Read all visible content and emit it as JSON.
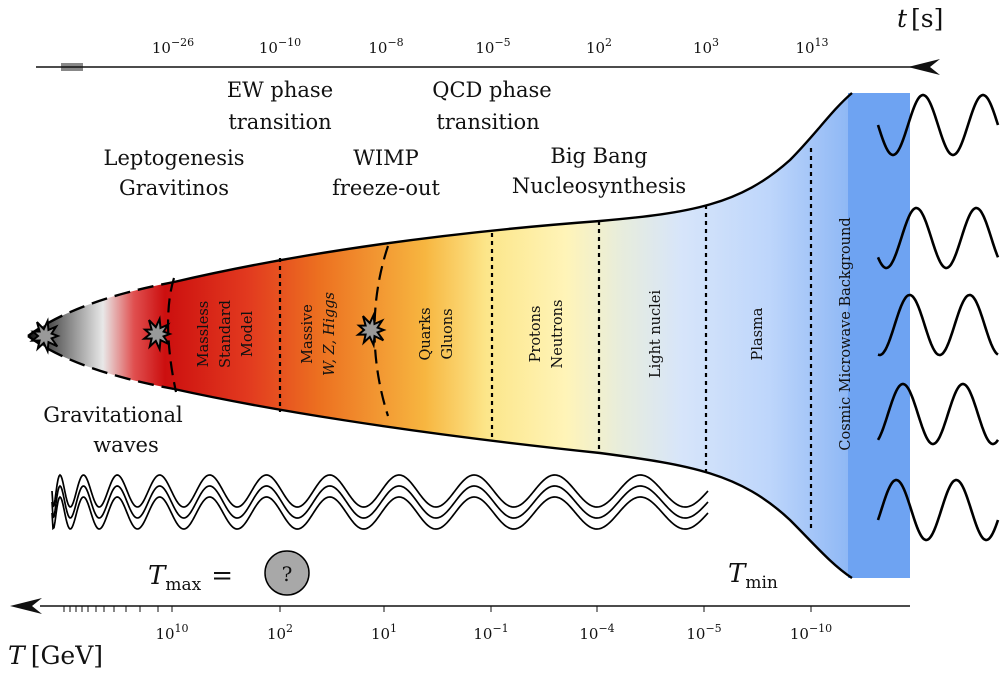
{
  "top_axis": {
    "variable": "t",
    "unit": "[s]",
    "ticks": [
      {
        "base": "10",
        "exp": "−26"
      },
      {
        "base": "10",
        "exp": "−10"
      },
      {
        "base": "10",
        "exp": "−8"
      },
      {
        "base": "10",
        "exp": "−5"
      },
      {
        "base": "10",
        "exp": "2"
      },
      {
        "base": "10",
        "exp": "3"
      },
      {
        "base": "10",
        "exp": "13"
      }
    ]
  },
  "bottom_axis": {
    "variable": "T",
    "unit": "[GeV]",
    "ticks": [
      {
        "base": "10",
        "exp": "10"
      },
      {
        "base": "10",
        "exp": "2"
      },
      {
        "base": "10",
        "exp": "1"
      },
      {
        "base": "10",
        "exp": "−1"
      },
      {
        "base": "10",
        "exp": "−4"
      },
      {
        "base": "10",
        "exp": "−5"
      },
      {
        "base": "10",
        "exp": "−10"
      }
    ]
  },
  "events": [
    {
      "line1": "EW phase",
      "line2": "transition"
    },
    {
      "line1": "QCD phase",
      "line2": "transition"
    },
    {
      "line1": "Leptogenesis",
      "line2": "Gravitinos"
    },
    {
      "line1": "WIMP",
      "line2": "freeze-out"
    },
    {
      "line1": "Big Bang",
      "line2": "Nucleosynthesis"
    }
  ],
  "eras": [
    {
      "line1": "Massless",
      "line2": "Standard",
      "line3": "Model"
    },
    {
      "line1": "Massive",
      "line2": "W, Z, Higgs"
    },
    {
      "line1": "Quarks",
      "line2": "Gluons"
    },
    {
      "line1": "Protons",
      "line2": "Neutrons"
    },
    {
      "line1": "Light nuclei"
    },
    {
      "line1": "Plasma"
    },
    {
      "line1": "Cosmic Microwave Background"
    }
  ],
  "gravitational_waves": {
    "line1": "Gravitational",
    "line2": "waves"
  },
  "t_max": {
    "symbol": "T",
    "sub": "max",
    "equals": "=",
    "value": "?"
  },
  "t_min": {
    "symbol": "T",
    "sub": "min"
  },
  "colors": {
    "axis": "#111111",
    "massless_red": "#cc1111",
    "orange": "#f08a20",
    "yellow": "#fff2a8",
    "plasma_blue": "#cfe0fb",
    "cmb_blue": "#6ea3f2",
    "unknown_circle": "#a8a8a8"
  }
}
